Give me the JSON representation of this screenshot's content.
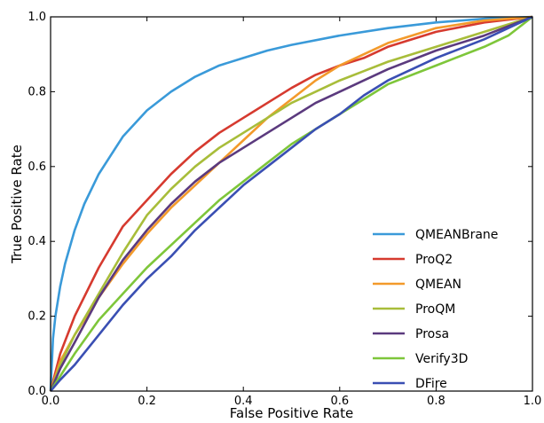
{
  "chart_data": {
    "type": "line",
    "title": "",
    "xlabel": "False Positive Rate",
    "ylabel": "True Positive Rate",
    "xlim": [
      0.0,
      1.0
    ],
    "ylim": [
      0.0,
      1.0
    ],
    "xticks": [
      "0.0",
      "0.2",
      "0.4",
      "0.6",
      "0.8",
      "1.0"
    ],
    "yticks": [
      "0.0",
      "0.2",
      "0.4",
      "0.6",
      "0.8",
      "1.0"
    ],
    "grid": false,
    "legend_position": "bottom-right",
    "series": [
      {
        "name": "QMEANBrane",
        "color": "#3a9ad9",
        "points": [
          [
            0,
            0
          ],
          [
            0.005,
            0.14
          ],
          [
            0.01,
            0.2
          ],
          [
            0.02,
            0.28
          ],
          [
            0.03,
            0.34
          ],
          [
            0.05,
            0.43
          ],
          [
            0.07,
            0.5
          ],
          [
            0.1,
            0.58
          ],
          [
            0.15,
            0.68
          ],
          [
            0.2,
            0.75
          ],
          [
            0.25,
            0.8
          ],
          [
            0.3,
            0.84
          ],
          [
            0.35,
            0.87
          ],
          [
            0.4,
            0.89
          ],
          [
            0.45,
            0.91
          ],
          [
            0.5,
            0.925
          ],
          [
            0.6,
            0.95
          ],
          [
            0.7,
            0.97
          ],
          [
            0.8,
            0.985
          ],
          [
            0.9,
            0.995
          ],
          [
            1,
            1
          ]
        ]
      },
      {
        "name": "ProQ2",
        "color": "#d63a2f",
        "points": [
          [
            0,
            0
          ],
          [
            0.02,
            0.1
          ],
          [
            0.05,
            0.2
          ],
          [
            0.1,
            0.33
          ],
          [
            0.15,
            0.44
          ],
          [
            0.2,
            0.51
          ],
          [
            0.25,
            0.58
          ],
          [
            0.3,
            0.64
          ],
          [
            0.35,
            0.69
          ],
          [
            0.4,
            0.73
          ],
          [
            0.45,
            0.77
          ],
          [
            0.5,
            0.81
          ],
          [
            0.55,
            0.845
          ],
          [
            0.6,
            0.87
          ],
          [
            0.65,
            0.89
          ],
          [
            0.7,
            0.92
          ],
          [
            0.8,
            0.96
          ],
          [
            0.9,
            0.985
          ],
          [
            1,
            1
          ]
        ]
      },
      {
        "name": "QMEAN",
        "color": "#f39a2b",
        "points": [
          [
            0,
            0
          ],
          [
            0.02,
            0.08
          ],
          [
            0.05,
            0.15
          ],
          [
            0.1,
            0.25
          ],
          [
            0.15,
            0.34
          ],
          [
            0.2,
            0.42
          ],
          [
            0.25,
            0.49
          ],
          [
            0.3,
            0.55
          ],
          [
            0.35,
            0.61
          ],
          [
            0.4,
            0.67
          ],
          [
            0.45,
            0.73
          ],
          [
            0.5,
            0.78
          ],
          [
            0.55,
            0.83
          ],
          [
            0.6,
            0.87
          ],
          [
            0.65,
            0.9
          ],
          [
            0.7,
            0.93
          ],
          [
            0.75,
            0.95
          ],
          [
            0.8,
            0.97
          ],
          [
            0.9,
            0.99
          ],
          [
            1,
            1
          ]
        ]
      },
      {
        "name": "ProQM",
        "color": "#a8bd3a",
        "points": [
          [
            0,
            0
          ],
          [
            0.02,
            0.07
          ],
          [
            0.05,
            0.15
          ],
          [
            0.1,
            0.26
          ],
          [
            0.15,
            0.37
          ],
          [
            0.2,
            0.47
          ],
          [
            0.25,
            0.54
          ],
          [
            0.3,
            0.6
          ],
          [
            0.35,
            0.65
          ],
          [
            0.4,
            0.69
          ],
          [
            0.45,
            0.73
          ],
          [
            0.5,
            0.77
          ],
          [
            0.55,
            0.8
          ],
          [
            0.6,
            0.83
          ],
          [
            0.65,
            0.855
          ],
          [
            0.7,
            0.88
          ],
          [
            0.8,
            0.92
          ],
          [
            0.9,
            0.96
          ],
          [
            1,
            1
          ]
        ]
      },
      {
        "name": "Prosa",
        "color": "#5b3a7e",
        "points": [
          [
            0,
            0
          ],
          [
            0.02,
            0.06
          ],
          [
            0.05,
            0.13
          ],
          [
            0.1,
            0.25
          ],
          [
            0.15,
            0.35
          ],
          [
            0.2,
            0.43
          ],
          [
            0.25,
            0.5
          ],
          [
            0.3,
            0.56
          ],
          [
            0.35,
            0.61
          ],
          [
            0.4,
            0.65
          ],
          [
            0.45,
            0.69
          ],
          [
            0.5,
            0.73
          ],
          [
            0.55,
            0.77
          ],
          [
            0.6,
            0.8
          ],
          [
            0.65,
            0.83
          ],
          [
            0.7,
            0.86
          ],
          [
            0.8,
            0.91
          ],
          [
            0.9,
            0.95
          ],
          [
            1,
            1
          ]
        ]
      },
      {
        "name": "Verify3D",
        "color": "#7ec63a",
        "points": [
          [
            0,
            0
          ],
          [
            0.02,
            0.04
          ],
          [
            0.05,
            0.1
          ],
          [
            0.1,
            0.19
          ],
          [
            0.15,
            0.26
          ],
          [
            0.2,
            0.33
          ],
          [
            0.25,
            0.39
          ],
          [
            0.3,
            0.45
          ],
          [
            0.35,
            0.51
          ],
          [
            0.4,
            0.56
          ],
          [
            0.45,
            0.61
          ],
          [
            0.5,
            0.66
          ],
          [
            0.55,
            0.7
          ],
          [
            0.6,
            0.74
          ],
          [
            0.65,
            0.78
          ],
          [
            0.7,
            0.82
          ],
          [
            0.8,
            0.87
          ],
          [
            0.9,
            0.92
          ],
          [
            0.95,
            0.95
          ],
          [
            1,
            1
          ]
        ]
      },
      {
        "name": "DFire",
        "color": "#3a4fb3",
        "points": [
          [
            0,
            0
          ],
          [
            0.02,
            0.03
          ],
          [
            0.05,
            0.07
          ],
          [
            0.1,
            0.15
          ],
          [
            0.15,
            0.23
          ],
          [
            0.2,
            0.3
          ],
          [
            0.25,
            0.36
          ],
          [
            0.3,
            0.43
          ],
          [
            0.35,
            0.49
          ],
          [
            0.4,
            0.55
          ],
          [
            0.45,
            0.6
          ],
          [
            0.5,
            0.65
          ],
          [
            0.55,
            0.7
          ],
          [
            0.6,
            0.74
          ],
          [
            0.65,
            0.79
          ],
          [
            0.7,
            0.83
          ],
          [
            0.75,
            0.86
          ],
          [
            0.8,
            0.89
          ],
          [
            0.9,
            0.94
          ],
          [
            1,
            1
          ]
        ]
      }
    ]
  }
}
